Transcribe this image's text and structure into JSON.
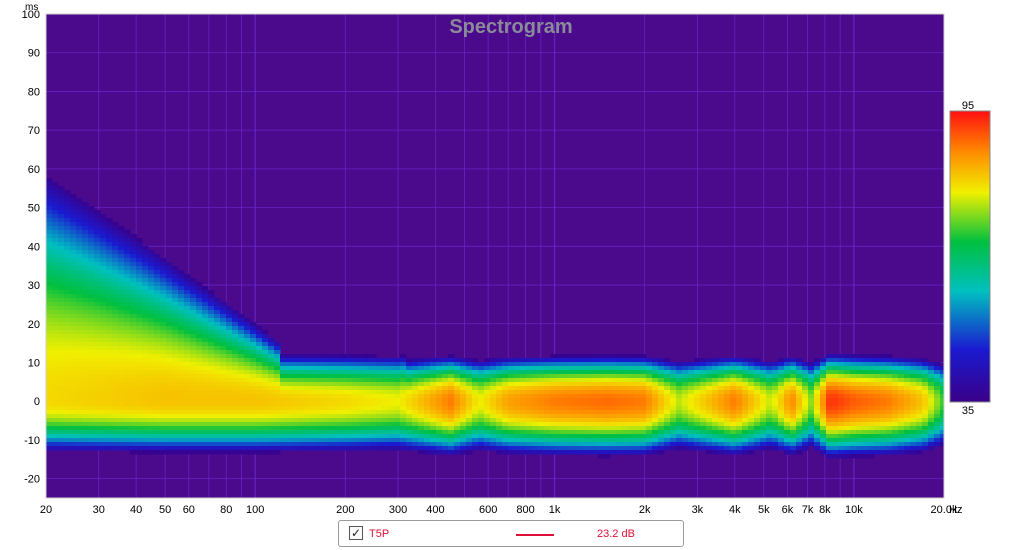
{
  "chart_data": {
    "type": "heatmap",
    "title": "Spectrogram",
    "ylabel": "ms",
    "xunit": "Hz",
    "xscale": "log",
    "xlim": [
      20,
      20000
    ],
    "ylim": [
      -25,
      100
    ],
    "x_ticks": [
      {
        "value": 20,
        "label": "20"
      },
      {
        "value": 30,
        "label": "30"
      },
      {
        "value": 40,
        "label": "40"
      },
      {
        "value": 50,
        "label": "50"
      },
      {
        "value": 60,
        "label": "60"
      },
      {
        "value": 80,
        "label": "80"
      },
      {
        "value": 100,
        "label": "100"
      },
      {
        "value": 200,
        "label": "200"
      },
      {
        "value": 300,
        "label": "300"
      },
      {
        "value": 400,
        "label": "400"
      },
      {
        "value": 600,
        "label": "600"
      },
      {
        "value": 800,
        "label": "800"
      },
      {
        "value": 1000,
        "label": "1k"
      },
      {
        "value": 2000,
        "label": "2k"
      },
      {
        "value": 3000,
        "label": "3k"
      },
      {
        "value": 4000,
        "label": "4k"
      },
      {
        "value": 5000,
        "label": "5k"
      },
      {
        "value": 6000,
        "label": "6k"
      },
      {
        "value": 7000,
        "label": "7k"
      },
      {
        "value": 8000,
        "label": "8k"
      },
      {
        "value": 10000,
        "label": "10k"
      },
      {
        "value": 20000,
        "label": "20.0k"
      }
    ],
    "y_ticks": [
      -20,
      -10,
      0,
      10,
      20,
      30,
      40,
      50,
      60,
      70,
      80,
      90,
      100
    ],
    "colorbar": {
      "min": 35,
      "max": 95,
      "min_label": "35",
      "max_label": "95"
    },
    "grid": true,
    "legend_position": "bottom-center",
    "level_profile": [
      {
        "freq": 20,
        "peak": 80
      },
      {
        "freq": 50,
        "peak": 82
      },
      {
        "freq": 100,
        "peak": 82
      },
      {
        "freq": 200,
        "peak": 80
      },
      {
        "freq": 300,
        "peak": 78
      },
      {
        "freq": 450,
        "peak": 88
      },
      {
        "freq": 560,
        "peak": 78
      },
      {
        "freq": 700,
        "peak": 85
      },
      {
        "freq": 1000,
        "peak": 88
      },
      {
        "freq": 1500,
        "peak": 89
      },
      {
        "freq": 2000,
        "peak": 88
      },
      {
        "freq": 2600,
        "peak": 76
      },
      {
        "freq": 4000,
        "peak": 88
      },
      {
        "freq": 5300,
        "peak": 76
      },
      {
        "freq": 6200,
        "peak": 87
      },
      {
        "freq": 7200,
        "peak": 74
      },
      {
        "freq": 8300,
        "peak": 93
      },
      {
        "freq": 10000,
        "peak": 90
      },
      {
        "freq": 13000,
        "peak": 88
      },
      {
        "freq": 17000,
        "peak": 82
      },
      {
        "freq": 20000,
        "peak": 70
      }
    ]
  },
  "legend": {
    "checked": true,
    "name": "T5P",
    "value": "23.2 dB",
    "color": "#e0103a"
  },
  "colors": {
    "background": "#4b0a8c",
    "grid": "#6a2ad0",
    "title": "#8a8a9a"
  }
}
